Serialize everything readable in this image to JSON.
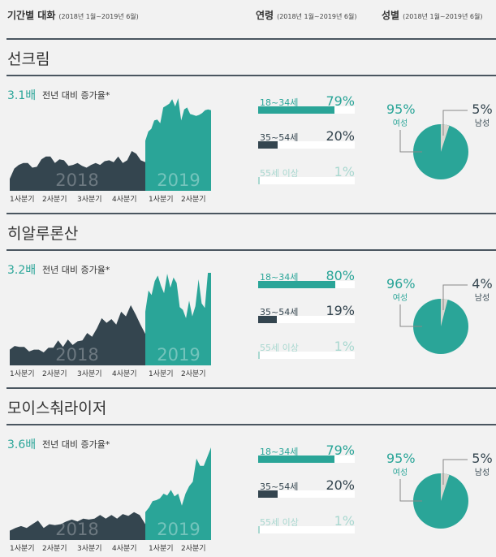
{
  "header": {
    "period_title": "기간별 대화",
    "period_range": "(2018년 1월~2019년 6월)",
    "age_title": "연령",
    "age_range": "(2018년 1월~2019년 6월)",
    "gender_title": "성별",
    "gender_range": "(2018년 1월~2019년 6월)"
  },
  "colors": {
    "teal": "#2aa598",
    "dark": "#34454f",
    "light_teal": "#a9d8d0",
    "male_slice": "#d9d6d0"
  },
  "quarter_labels": [
    "1사분기",
    "2사분기",
    "3사분기",
    "4사분기",
    "1사분기",
    "2사분기"
  ],
  "year_labels": [
    "2018",
    "2019"
  ],
  "growth_desc": "전년 대비 증가율*",
  "female_label": "여성",
  "male_label": "남성",
  "sections": [
    {
      "title": "선크림",
      "multiplier": "3.1배",
      "ages": [
        {
          "label": "18~34세",
          "pct": "79%",
          "value": 79
        },
        {
          "label": "35~54세",
          "pct": "20%",
          "value": 20
        },
        {
          "label": "55세 이상",
          "pct": "1%",
          "value": 1
        }
      ],
      "female_pct": "95%",
      "female_value": 95,
      "male_pct": "5%",
      "male_value": 5,
      "series_2018": [
        13,
        24,
        28,
        30,
        30,
        25,
        26,
        34,
        37,
        37,
        30,
        34,
        33,
        27,
        28,
        30,
        27,
        25,
        28,
        30,
        28,
        32,
        33,
        31,
        37,
        30,
        33,
        43,
        40,
        33,
        31
      ],
      "series_2019": [
        54,
        64,
        67,
        76,
        77,
        73,
        90,
        92,
        94,
        99,
        91,
        100,
        76,
        88,
        90,
        83,
        82,
        81,
        82,
        84,
        87,
        88,
        87
      ]
    },
    {
      "title": "히알루론산",
      "multiplier": "3.2배",
      "ages": [
        {
          "label": "18~34세",
          "pct": "80%",
          "value": 80
        },
        {
          "label": "35~54세",
          "pct": "19%",
          "value": 19
        },
        {
          "label": "55세 이상",
          "pct": "1%",
          "value": 1
        }
      ],
      "female_pct": "96%",
      "female_value": 96,
      "male_pct": "4%",
      "male_value": 4,
      "series_2018": [
        17,
        21,
        20,
        20,
        15,
        17,
        17,
        14,
        19,
        19,
        27,
        20,
        28,
        22,
        26,
        27,
        35,
        31,
        40,
        51,
        46,
        50,
        44,
        58,
        53,
        65,
        55,
        44,
        34
      ],
      "series_2019": [
        58,
        81,
        76,
        91,
        97,
        86,
        78,
        99,
        84,
        95,
        89,
        63,
        60,
        51,
        70,
        53,
        64,
        93,
        67,
        62,
        100,
        100
      ]
    },
    {
      "title": "모이스춰라이저",
      "multiplier": "3.6배",
      "ages": [
        {
          "label": "18~34세",
          "pct": "79%",
          "value": 79
        },
        {
          "label": "35~54세",
          "pct": "20%",
          "value": 20
        },
        {
          "label": "55세 이상",
          "pct": "1%",
          "value": 1
        }
      ],
      "female_pct": "95%",
      "female_value": 95,
      "male_pct": "5%",
      "male_value": 5,
      "series_2018": [
        10,
        13,
        15,
        13,
        17,
        21,
        13,
        17,
        16,
        17,
        20,
        22,
        20,
        23,
        22,
        23,
        27,
        23,
        27,
        23,
        28,
        26,
        30,
        27,
        17
      ],
      "series_2019": [
        30,
        35,
        42,
        43,
        45,
        50,
        48,
        54,
        47,
        50,
        37,
        50,
        58,
        63,
        88,
        80,
        80,
        90,
        100
      ]
    }
  ]
}
